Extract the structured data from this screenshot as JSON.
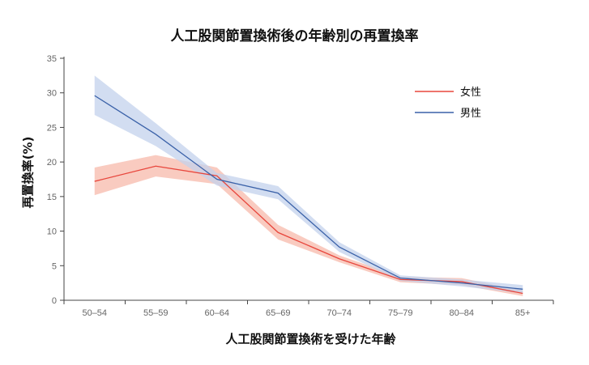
{
  "chart_data": {
    "type": "line",
    "title": "人工股関節置換術後の年齢別の再置換率",
    "xlabel": "人工股関節置換術を受けた年齢",
    "ylabel": "再置換率(%)",
    "categories": [
      "50–54",
      "55–59",
      "60–64",
      "65–69",
      "70–74",
      "75–79",
      "80–84",
      "85+"
    ],
    "yticks": [
      0,
      5,
      10,
      15,
      20,
      25,
      30,
      35
    ],
    "ylim": [
      0,
      35
    ],
    "legend_position": "top-right",
    "grid": false,
    "series": [
      {
        "name": "女性",
        "color": "#e8463c",
        "band_color": "#f7b9ab",
        "values": [
          17.2,
          19.4,
          18.0,
          9.8,
          6.0,
          3.0,
          2.7,
          1.0
        ],
        "lower": [
          15.2,
          17.9,
          16.8,
          8.8,
          5.5,
          2.6,
          2.2,
          0.6
        ],
        "upper": [
          19.2,
          21.0,
          19.2,
          10.9,
          6.5,
          3.4,
          3.2,
          1.4
        ]
      },
      {
        "name": "男性",
        "color": "#3a61a8",
        "band_color": "#c3d2ec",
        "values": [
          29.6,
          24.0,
          17.5,
          15.5,
          7.7,
          3.2,
          2.5,
          1.6
        ],
        "lower": [
          26.8,
          22.3,
          16.6,
          14.6,
          7.0,
          2.8,
          2.0,
          1.0
        ],
        "upper": [
          32.5,
          25.6,
          18.4,
          16.5,
          8.4,
          3.6,
          3.0,
          2.2
        ]
      }
    ]
  }
}
